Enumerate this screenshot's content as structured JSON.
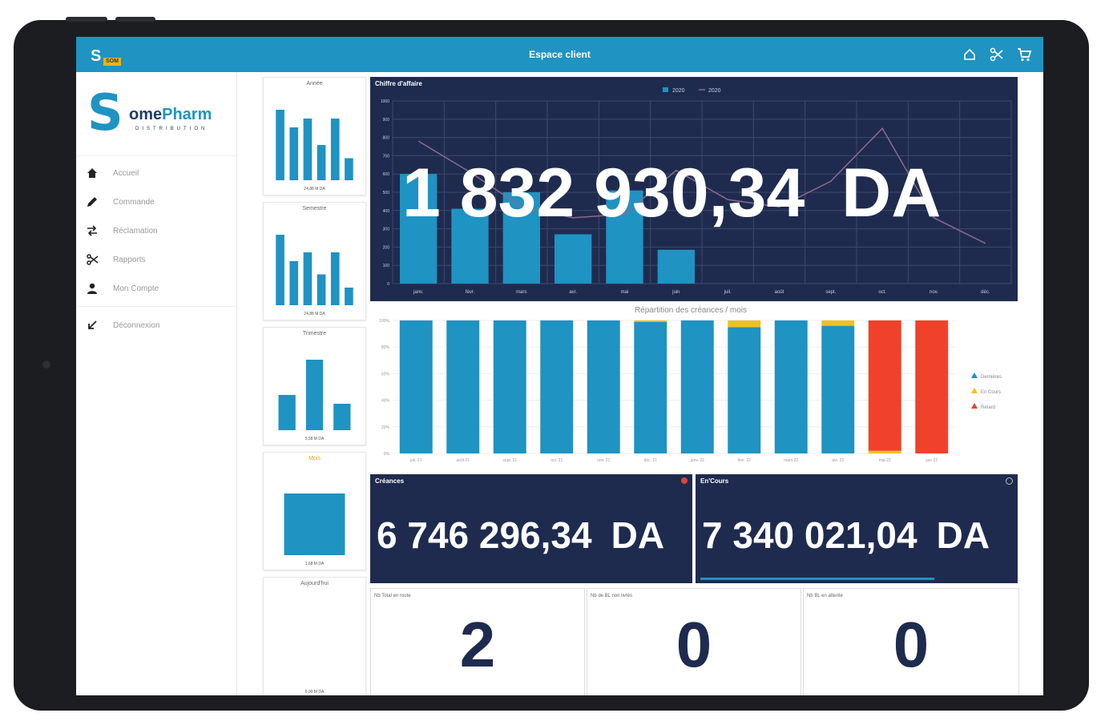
{
  "header": {
    "title": "Espace client",
    "mini_logo_letter": "S",
    "mini_logo_tag": "SOM"
  },
  "logo": {
    "first_letter": "S",
    "word_start": "ome",
    "word_end": "Pharm",
    "subtitle": "DISTRIBUTION"
  },
  "menu": [
    {
      "label": "Accueil",
      "icon": "home-icon"
    },
    {
      "label": "Commande",
      "icon": "pencil-icon"
    },
    {
      "label": "Réclamation",
      "icon": "exchange-icon"
    },
    {
      "label": "Rapports",
      "icon": "scissors-icon"
    },
    {
      "label": "Mon Compte",
      "icon": "user-icon"
    },
    {
      "label": "Déconnexion",
      "icon": "logout-icon"
    }
  ],
  "thumbnails": [
    {
      "title": "Année",
      "value": "24,88 M DA",
      "values": [
        8,
        6,
        7,
        4,
        7,
        2.5
      ]
    },
    {
      "title": "Semestre",
      "value": "24,88 M DA",
      "values": [
        8,
        5,
        6,
        3.5,
        6,
        2
      ]
    },
    {
      "title": "Trimestre",
      "value": "5,58 M DA",
      "values": [
        4,
        8,
        3
      ]
    },
    {
      "title": "Mois",
      "value": "1,68 M DA",
      "values": [
        7
      ]
    },
    {
      "title": "Aujourd'hui",
      "value": "0,00 M DA",
      "values": []
    }
  ],
  "chiffre_affaire": {
    "title": "Chiffre d'affaire",
    "big_value": "1 832 930,34",
    "currency": "DA"
  },
  "creances": {
    "title": "Créances",
    "value": "6 746 296,34",
    "currency": "DA"
  },
  "encours": {
    "title": "En'Cours",
    "value": "7 340 021,04",
    "currency": "DA"
  },
  "stats": [
    {
      "label": "Nb Total en route",
      "value": "2"
    },
    {
      "label": "Nb de BL non livrés",
      "value": "0"
    },
    {
      "label": "Nb BL en attente",
      "value": "0"
    }
  ],
  "chart_data": [
    {
      "type": "bar",
      "title": "Chiffre d'affaire",
      "categories": [
        "janv.",
        "févr.",
        "mars",
        "avr.",
        "mai",
        "juin",
        "juil.",
        "août",
        "sept.",
        "oct.",
        "nov.",
        "déc."
      ],
      "series": [
        {
          "name": "2020",
          "values": [
            600,
            410,
            500,
            270,
            510,
            185,
            null,
            null,
            null,
            null,
            null,
            null
          ],
          "color": "#1f93c2"
        },
        {
          "name": "2020",
          "values": [
            780,
            610,
            420,
            360,
            380,
            620,
            460,
            420,
            560,
            850,
            360,
            220
          ],
          "color": "#8e6a8e",
          "kind": "line"
        }
      ],
      "yticks": [
        0,
        100,
        200,
        300,
        400,
        500,
        600,
        700,
        800,
        900,
        1000
      ],
      "ylim": [
        0,
        1000
      ],
      "legend": "top",
      "grid": true
    },
    {
      "type": "bar",
      "title": "Répartition des créances / mois",
      "stacked": true,
      "categories": [
        "juil. 21",
        "août 21",
        "sept. 21",
        "oct. 21",
        "nov. 21",
        "déc. 21",
        "janv. 22",
        "févr. 22",
        "mars 22",
        "avr. 22",
        "mai 22",
        "juin 22"
      ],
      "series": [
        {
          "name": "Dernières",
          "values": [
            100,
            100,
            100,
            100,
            100,
            99,
            100,
            95,
            100,
            96,
            0,
            0
          ],
          "color": "#1f93c2"
        },
        {
          "name": "En Cours",
          "values": [
            0,
            0,
            0,
            0,
            0,
            1,
            0,
            5,
            0,
            4,
            2,
            0
          ],
          "color": "#f0c020"
        },
        {
          "name": "Retard",
          "values": [
            0,
            0,
            0,
            0,
            0,
            0,
            0,
            0,
            0,
            0,
            98,
            100
          ],
          "color": "#f0412a"
        }
      ],
      "yticks": [
        "0%",
        "20%",
        "40%",
        "60%",
        "80%",
        "100%"
      ],
      "ylim": [
        0,
        100
      ],
      "legend": "right"
    }
  ]
}
